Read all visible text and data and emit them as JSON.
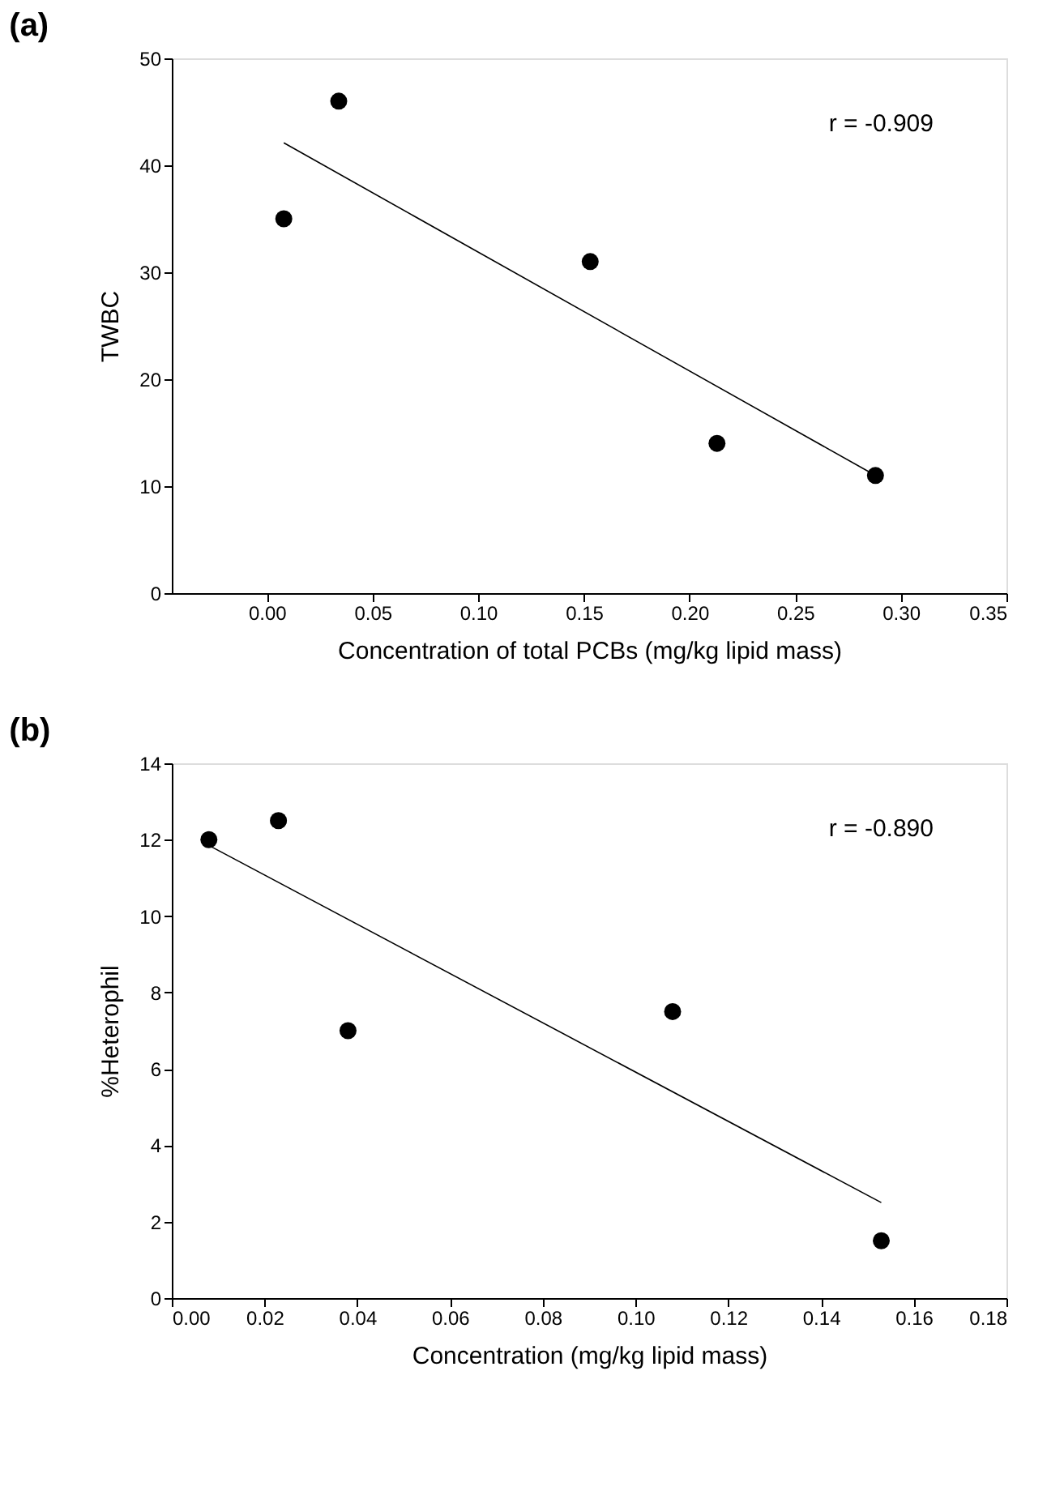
{
  "chart_data": [
    {
      "type": "scatter",
      "title": "(a)",
      "xlabel": "Concentration of total PCBs (mg/kg lipid mass)",
      "ylabel": "TWBC",
      "xlim": [
        -0.045,
        0.35
      ],
      "xticks": [
        {
          "value": 0,
          "label": "0.00"
        },
        0.05,
        {
          "value": 0.1,
          "label": "0.10"
        },
        0.15,
        {
          "value": 0.2,
          "label": "0.20"
        },
        0.25,
        {
          "value": 0.3,
          "label": "0.30"
        },
        0.35
      ],
      "ylim": [
        0,
        50
      ],
      "yticks": [
        0,
        10,
        20,
        30,
        40,
        50
      ],
      "grid": false,
      "annotations": [
        "r = -0.909"
      ],
      "series": [
        {
          "marker": "circle",
          "color": "#000000",
          "x": [
            0.008,
            0.034,
            0.153,
            0.213,
            0.288
          ],
          "values": [
            35,
            46,
            31,
            14,
            11
          ]
        },
        {
          "type": "line",
          "marker": "none",
          "color": "#000000",
          "line_style": "solid",
          "x": [
            0.008,
            0.288
          ],
          "values": [
            42.1,
            11
          ]
        }
      ]
    },
    {
      "type": "scatter",
      "title": "(b)",
      "xlabel": "Concentration (mg/kg lipid mass)",
      "ylabel": "%Heterophil",
      "xlim": [
        0,
        0.18
      ],
      "xticks": [
        {
          "value": 0,
          "label": "0.00"
        },
        0.02,
        0.04,
        0.06,
        0.08,
        {
          "value": 0.1,
          "label": "0.10"
        },
        0.12,
        0.14,
        0.16,
        0.18
      ],
      "ylim": [
        0,
        14
      ],
      "yticks": [
        0,
        2,
        4,
        6,
        8,
        10,
        12,
        14
      ],
      "grid": false,
      "annotations": [
        "r = -0.890"
      ],
      "series": [
        {
          "marker": "circle",
          "color": "#000000",
          "x": [
            0.008,
            0.023,
            0.038,
            0.108,
            0.153
          ],
          "values": [
            12,
            12.5,
            7,
            7.5,
            1.5
          ]
        },
        {
          "type": "line",
          "marker": "none",
          "color": "#000000",
          "line_style": "solid",
          "x": [
            0.008,
            0.153
          ],
          "values": [
            11.85,
            2.5
          ]
        }
      ]
    }
  ]
}
